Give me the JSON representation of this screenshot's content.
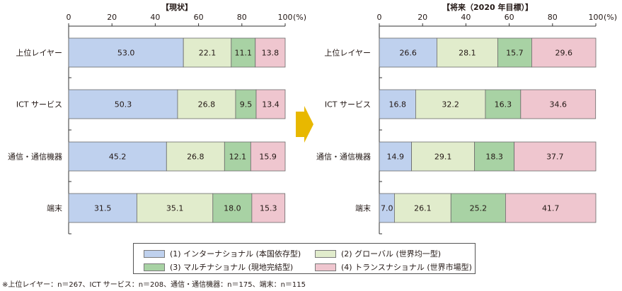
{
  "chart_data": [
    {
      "type": "bar",
      "orientation": "horizontal",
      "stacked": true,
      "title": "【現状】",
      "unit_label": "(%)",
      "xlim": [
        0,
        100
      ],
      "ticks": [
        0,
        20,
        40,
        60,
        80,
        100
      ],
      "tick_labels": [
        "0",
        "20",
        "40",
        "60",
        "80",
        "100"
      ],
      "categories": [
        "上位レイヤー",
        "ICT サービス",
        "通信・通信機器",
        "端末"
      ],
      "series": [
        {
          "name": "(1) インターナショナル (本国依存型)",
          "values": [
            53.0,
            50.3,
            45.2,
            31.5
          ]
        },
        {
          "name": "(2) グローバル (世界均一型)",
          "values": [
            22.1,
            26.8,
            26.8,
            35.1
          ]
        },
        {
          "name": "(3) マルチナショナル (現地完結型)",
          "values": [
            11.1,
            9.5,
            12.1,
            18.0
          ]
        },
        {
          "name": "(4) トランスナショナル (世界市場型)",
          "values": [
            13.8,
            13.4,
            15.9,
            15.3
          ]
        }
      ],
      "data_labels": [
        [
          "53.0",
          "50.3",
          "45.2",
          "31.5"
        ],
        [
          "22.1",
          "26.8",
          "26.8",
          "35.1"
        ],
        [
          "11.1",
          "9.5",
          "12.1",
          "18.0"
        ],
        [
          "13.8",
          "13.4",
          "15.9",
          "15.3"
        ]
      ]
    },
    {
      "type": "bar",
      "orientation": "horizontal",
      "stacked": true,
      "title": "【将来（2020 年目標）】",
      "unit_label": "(%)",
      "xlim": [
        0,
        100
      ],
      "ticks": [
        0,
        20,
        40,
        60,
        80,
        100
      ],
      "tick_labels": [
        "0",
        "20",
        "40",
        "60",
        "80",
        "100"
      ],
      "categories": [
        "上位レイヤー",
        "ICT サービス",
        "通信・通信機器",
        "端末"
      ],
      "series": [
        {
          "name": "(1) インターナショナル (本国依存型)",
          "values": [
            26.6,
            16.8,
            14.9,
            7.0
          ]
        },
        {
          "name": "(2) グローバル (世界均一型)",
          "values": [
            28.1,
            32.2,
            29.1,
            26.1
          ]
        },
        {
          "name": "(3) マルチナショナル (現地完結型)",
          "values": [
            15.7,
            16.3,
            18.3,
            25.2
          ]
        },
        {
          "name": "(4) トランスナショナル (世界市場型)",
          "values": [
            29.6,
            34.6,
            37.7,
            41.7
          ]
        }
      ],
      "data_labels": [
        [
          "26.6",
          "16.8",
          "14.9",
          "7.0"
        ],
        [
          "28.1",
          "32.2",
          "29.1",
          "26.1"
        ],
        [
          "15.7",
          "16.3",
          "18.3",
          "25.2"
        ],
        [
          "29.6",
          "34.6",
          "37.7",
          "41.7"
        ]
      ]
    }
  ],
  "colors": {
    "series": [
      "#bfd1ee",
      "#e1eccc",
      "#a8d2a4",
      "#efc6cf"
    ],
    "bar_border": "#6a6a6a",
    "arrow": "#e8b800",
    "axis": "#333333"
  },
  "legend": {
    "items": [
      {
        "label": "(1) インターナショナル (本国依存型)",
        "color": "#bfd1ee"
      },
      {
        "label": "(2) グローバル (世界均一型)",
        "color": "#e1eccc"
      },
      {
        "label": "(3) マルチナショナル (現地完結型)",
        "color": "#a8d2a4"
      },
      {
        "label": "(4) トランスナショナル (世界市場型)",
        "color": "#efc6cf"
      }
    ]
  },
  "footnote": "※上位レイヤー：n＝267、ICT サービス：n＝208、通信・通信機器：n＝175、端末：n＝115",
  "arrow_icon": "right-arrow-icon"
}
